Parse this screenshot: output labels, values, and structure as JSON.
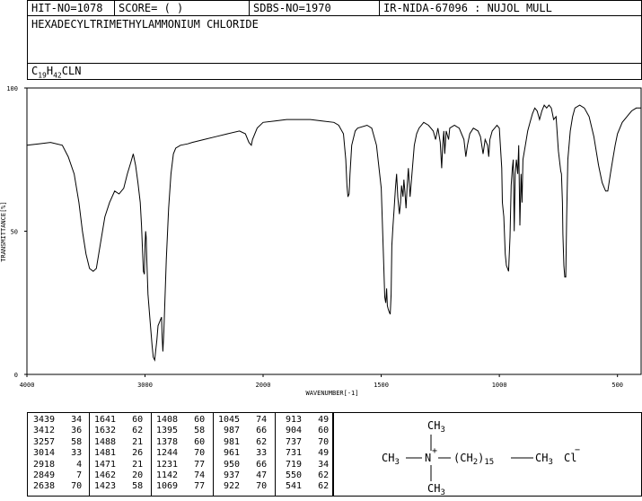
{
  "header": {
    "hit_no": "HIT-NO=1078",
    "score": "SCORE=  (    )",
    "sdbs_no": "SDBS-NO=1970",
    "ir_info": "IR-NIDA-67096 : NUJOL MULL"
  },
  "compound": {
    "name": "HEXADECYLTRIMETHYLAMMONIUM CHLORIDE",
    "formula_parts": [
      "C",
      "19",
      "H",
      "42",
      "CLN"
    ]
  },
  "chart_data": {
    "type": "line",
    "xlabel": "WAVENUMBER[-1]",
    "ylabel": "TRANSMITTANCE[%]",
    "xlim": [
      4000,
      400
    ],
    "ylim": [
      0,
      100
    ],
    "x_ticks": [
      "4000",
      "3000",
      "2000",
      "1500",
      "1000",
      "500"
    ],
    "y_ticks": [
      "100",
      "50",
      "0"
    ],
    "series": [
      {
        "points": [
          [
            4000,
            80
          ],
          [
            3900,
            80.5
          ],
          [
            3800,
            81
          ],
          [
            3700,
            80
          ],
          [
            3650,
            76
          ],
          [
            3600,
            70
          ],
          [
            3560,
            60
          ],
          [
            3530,
            50
          ],
          [
            3500,
            42
          ],
          [
            3470,
            37
          ],
          [
            3439,
            36
          ],
          [
            3412,
            37
          ],
          [
            3380,
            45
          ],
          [
            3340,
            55
          ],
          [
            3300,
            60
          ],
          [
            3257,
            64
          ],
          [
            3220,
            63
          ],
          [
            3180,
            65
          ],
          [
            3150,
            70
          ],
          [
            3120,
            74
          ],
          [
            3100,
            77
          ],
          [
            3080,
            73
          ],
          [
            3060,
            67
          ],
          [
            3040,
            60
          ],
          [
            3030,
            52
          ],
          [
            3020,
            42
          ],
          [
            3014,
            36
          ],
          [
            3005,
            35
          ],
          [
            3000,
            45
          ],
          [
            2995,
            50
          ],
          [
            2990,
            48
          ],
          [
            2985,
            40
          ],
          [
            2975,
            28
          ],
          [
            2960,
            20
          ],
          [
            2940,
            10
          ],
          [
            2930,
            6
          ],
          [
            2918,
            5
          ],
          [
            2910,
            8
          ],
          [
            2900,
            12
          ],
          [
            2890,
            17
          ],
          [
            2870,
            19
          ],
          [
            2860,
            20
          ],
          [
            2855,
            13
          ],
          [
            2849,
            8
          ],
          [
            2840,
            15
          ],
          [
            2820,
            40
          ],
          [
            2800,
            58
          ],
          [
            2780,
            70
          ],
          [
            2760,
            77
          ],
          [
            2740,
            79
          ],
          [
            2700,
            80
          ],
          [
            2638,
            80.5
          ],
          [
            2600,
            81
          ],
          [
            2500,
            82
          ],
          [
            2400,
            83
          ],
          [
            2300,
            84
          ],
          [
            2200,
            85
          ],
          [
            2150,
            84
          ],
          [
            2120,
            81
          ],
          [
            2100,
            80
          ],
          [
            2090,
            82
          ],
          [
            2050,
            86
          ],
          [
            2000,
            88
          ],
          [
            1950,
            88.5
          ],
          [
            1900,
            89
          ],
          [
            1800,
            89
          ],
          [
            1750,
            88.5
          ],
          [
            1700,
            88
          ],
          [
            1680,
            87
          ],
          [
            1660,
            84
          ],
          [
            1650,
            75
          ],
          [
            1645,
            66
          ],
          [
            1641,
            62
          ],
          [
            1636,
            63
          ],
          [
            1632,
            70
          ],
          [
            1625,
            80
          ],
          [
            1610,
            85
          ],
          [
            1600,
            86
          ],
          [
            1560,
            87
          ],
          [
            1540,
            86
          ],
          [
            1520,
            80
          ],
          [
            1500,
            65
          ],
          [
            1490,
            40
          ],
          [
            1485,
            27
          ],
          [
            1481,
            25
          ],
          [
            1477,
            30
          ],
          [
            1474,
            24
          ],
          [
            1471,
            23
          ],
          [
            1467,
            22
          ],
          [
            1462,
            21
          ],
          [
            1458,
            28
          ],
          [
            1455,
            45
          ],
          [
            1450,
            52
          ],
          [
            1445,
            58
          ],
          [
            1440,
            65
          ],
          [
            1435,
            70
          ],
          [
            1430,
            62
          ],
          [
            1423,
            56
          ],
          [
            1418,
            60
          ],
          [
            1414,
            66
          ],
          [
            1408,
            62
          ],
          [
            1404,
            68
          ],
          [
            1400,
            64
          ],
          [
            1395,
            58
          ],
          [
            1390,
            66
          ],
          [
            1385,
            72
          ],
          [
            1378,
            62
          ],
          [
            1370,
            70
          ],
          [
            1360,
            80
          ],
          [
            1350,
            84
          ],
          [
            1340,
            86
          ],
          [
            1320,
            88
          ],
          [
            1300,
            87
          ],
          [
            1280,
            85
          ],
          [
            1270,
            82
          ],
          [
            1260,
            86
          ],
          [
            1250,
            81
          ],
          [
            1244,
            72
          ],
          [
            1240,
            80
          ],
          [
            1235,
            85
          ],
          [
            1231,
            77
          ],
          [
            1225,
            85
          ],
          [
            1215,
            82
          ],
          [
            1210,
            86
          ],
          [
            1190,
            87
          ],
          [
            1170,
            86
          ],
          [
            1160,
            84
          ],
          [
            1150,
            82
          ],
          [
            1142,
            76
          ],
          [
            1135,
            80
          ],
          [
            1125,
            84
          ],
          [
            1110,
            86
          ],
          [
            1090,
            85
          ],
          [
            1080,
            83
          ],
          [
            1069,
            77
          ],
          [
            1060,
            82
          ],
          [
            1050,
            80
          ],
          [
            1045,
            76
          ],
          [
            1040,
            82
          ],
          [
            1030,
            85
          ],
          [
            1020,
            86
          ],
          [
            1010,
            87
          ],
          [
            1000,
            86
          ],
          [
            990,
            72
          ],
          [
            987,
            60
          ],
          [
            981,
            55
          ],
          [
            975,
            42
          ],
          [
            970,
            38
          ],
          [
            965,
            37
          ],
          [
            961,
            36
          ],
          [
            955,
            48
          ],
          [
            950,
            66
          ],
          [
            945,
            72
          ],
          [
            941,
            75
          ],
          [
            937,
            50
          ],
          [
            933,
            70
          ],
          [
            928,
            75
          ],
          [
            922,
            70
          ],
          [
            918,
            80
          ],
          [
            913,
            52
          ],
          [
            908,
            70
          ],
          [
            904,
            60
          ],
          [
            900,
            75
          ],
          [
            890,
            80
          ],
          [
            880,
            85
          ],
          [
            870,
            88
          ],
          [
            860,
            91
          ],
          [
            850,
            93
          ],
          [
            840,
            92
          ],
          [
            830,
            89
          ],
          [
            820,
            92
          ],
          [
            810,
            94
          ],
          [
            800,
            93
          ],
          [
            790,
            94
          ],
          [
            780,
            93
          ],
          [
            770,
            89
          ],
          [
            760,
            90
          ],
          [
            750,
            78
          ],
          [
            740,
            71
          ],
          [
            737,
            70
          ],
          [
            733,
            60
          ],
          [
            731,
            49
          ],
          [
            727,
            38
          ],
          [
            723,
            34
          ],
          [
            719,
            34
          ],
          [
            715,
            55
          ],
          [
            710,
            75
          ],
          [
            700,
            85
          ],
          [
            690,
            90
          ],
          [
            680,
            93
          ],
          [
            660,
            94
          ],
          [
            640,
            93
          ],
          [
            620,
            90
          ],
          [
            600,
            83
          ],
          [
            580,
            73
          ],
          [
            565,
            67
          ],
          [
            555,
            65
          ],
          [
            550,
            64
          ],
          [
            541,
            64
          ],
          [
            530,
            70
          ],
          [
            520,
            75
          ],
          [
            510,
            80
          ],
          [
            500,
            84
          ],
          [
            480,
            88
          ],
          [
            460,
            90
          ],
          [
            440,
            92
          ],
          [
            420,
            93
          ],
          [
            400,
            93
          ]
        ]
      }
    ]
  },
  "peak_table": [
    [
      [
        3439,
        34
      ],
      [
        3412,
        36
      ],
      [
        3257,
        58
      ],
      [
        3014,
        33
      ],
      [
        2918,
        4
      ],
      [
        2849,
        7
      ],
      [
        2638,
        70
      ]
    ],
    [
      [
        1641,
        60
      ],
      [
        1632,
        62
      ],
      [
        1488,
        21
      ],
      [
        1481,
        26
      ],
      [
        1471,
        21
      ],
      [
        1462,
        20
      ],
      [
        1423,
        58
      ]
    ],
    [
      [
        1408,
        60
      ],
      [
        1395,
        58
      ],
      [
        1378,
        60
      ],
      [
        1244,
        70
      ],
      [
        1231,
        77
      ],
      [
        1142,
        74
      ],
      [
        1069,
        77
      ]
    ],
    [
      [
        1045,
        74
      ],
      [
        987,
        66
      ],
      [
        981,
        62
      ],
      [
        961,
        33
      ],
      [
        950,
        66
      ],
      [
        937,
        47
      ],
      [
        922,
        70
      ]
    ],
    [
      [
        913,
        49
      ],
      [
        904,
        60
      ],
      [
        737,
        70
      ],
      [
        731,
        49
      ],
      [
        719,
        34
      ],
      [
        550,
        62
      ],
      [
        541,
        62
      ]
    ]
  ],
  "structure": {
    "top": "CH3",
    "left": "CH3",
    "center": "N",
    "charge": "+",
    "chain": "(CH2)15",
    "end": "CH3",
    "bottom": "CH3",
    "anion": "Cl",
    "anion_charge": "−"
  }
}
